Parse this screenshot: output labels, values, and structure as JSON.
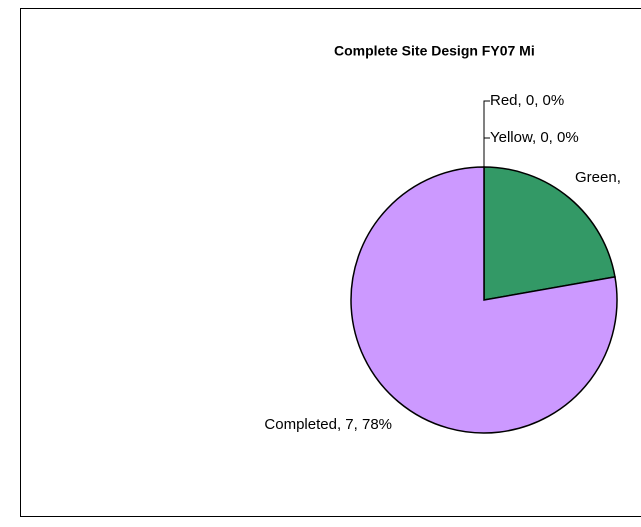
{
  "chart_data": {
    "type": "pie",
    "title": "Complete Site Design FY07 Mi",
    "categories": [
      "Red",
      "Yellow",
      "Green",
      "Completed"
    ],
    "values": [
      0,
      0,
      2,
      7
    ],
    "value_labels": [
      "Red, 0, 0%",
      "Yellow, 0, 0%",
      "Green,",
      "Completed, 7, 78%"
    ],
    "colors": [
      "#FF0000",
      "#FFFF00",
      "#339966",
      "#CC99FF"
    ]
  }
}
